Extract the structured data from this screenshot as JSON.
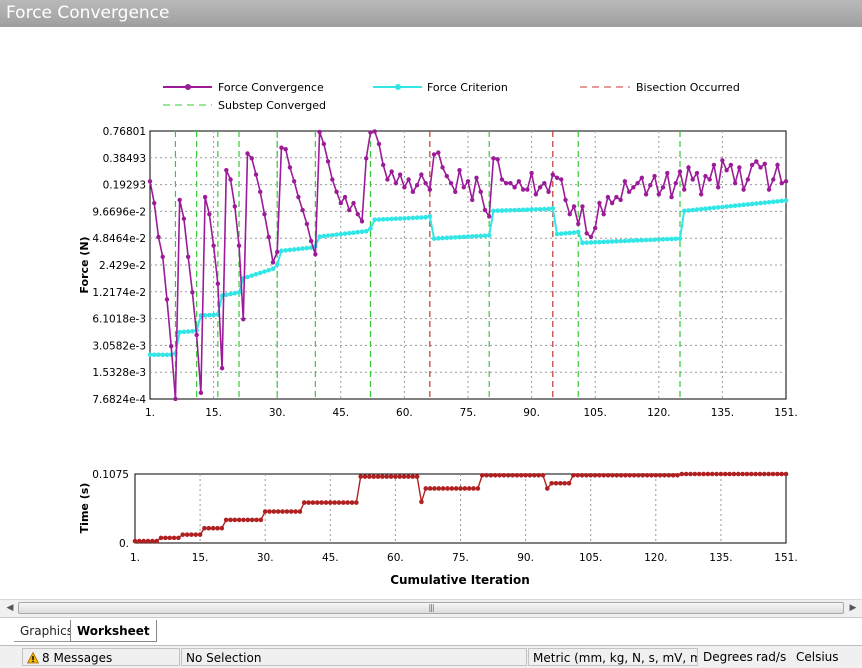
{
  "window": {
    "title": "Force Convergence"
  },
  "legend": {
    "force_convergence": "Force Convergence",
    "force_criterion": "Force Criterion",
    "bisection_occurred": "Bisection Occurred",
    "substep_converged": "Substep Converged"
  },
  "colors": {
    "force_convergence": "#9b1b99",
    "force_criterion": "#33e6e6",
    "bisection": "#c0392b",
    "substep": "#33cc33",
    "time_series": "#b02020"
  },
  "chart_data": [
    {
      "type": "line",
      "ylabel": "Force (N)",
      "yscale": "log",
      "ylim": [
        0.00076824,
        0.76801
      ],
      "xlim": [
        1,
        151
      ],
      "y_ticks": [
        "0.76801",
        "0.38493",
        "0.19293",
        "9.6696e-2",
        "4.8464e-2",
        "2.429e-2",
        "1.2174e-2",
        "6.1018e-3",
        "3.0582e-3",
        "1.5328e-3",
        "7.6824e-4"
      ],
      "x_ticks": [
        "1.",
        "15.",
        "30.",
        "45.",
        "60.",
        "75.",
        "90.",
        "105.",
        "120.",
        "135.",
        "151."
      ],
      "grid": true,
      "legend_position": "top",
      "substep_converged_iterations": [
        7,
        12,
        17,
        22,
        31,
        40,
        53,
        81,
        102,
        126
      ],
      "bisection_occurred_iterations": [
        67,
        96
      ],
      "series": [
        {
          "name": "Force Convergence",
          "points": [
            [
              1,
              0.21
            ],
            [
              2,
              0.12
            ],
            [
              3,
              0.05
            ],
            [
              4,
              0.03
            ],
            [
              5,
              0.01
            ],
            [
              6,
              0.003
            ],
            [
              7,
              0.00077
            ],
            [
              8,
              0.13
            ],
            [
              9,
              0.08
            ],
            [
              10,
              0.03
            ],
            [
              11,
              0.012
            ],
            [
              12,
              0.004
            ],
            [
              13,
              0.0009
            ],
            [
              14,
              0.14
            ],
            [
              15,
              0.09
            ],
            [
              16,
              0.04
            ],
            [
              17,
              0.015
            ],
            [
              18,
              0.0017
            ],
            [
              19,
              0.28
            ],
            [
              20,
              0.22
            ],
            [
              21,
              0.11
            ],
            [
              22,
              0.04
            ],
            [
              23,
              0.006
            ],
            [
              24,
              0.43
            ],
            [
              25,
              0.38
            ],
            [
              26,
              0.25
            ],
            [
              27,
              0.16
            ],
            [
              28,
              0.09
            ],
            [
              29,
              0.05
            ],
            [
              30,
              0.026
            ],
            [
              31,
              0.034
            ],
            [
              32,
              0.5
            ],
            [
              33,
              0.48
            ],
            [
              34,
              0.3
            ],
            [
              35,
              0.21
            ],
            [
              36,
              0.14
            ],
            [
              37,
              0.1
            ],
            [
              38,
              0.07
            ],
            [
              39,
              0.045
            ],
            [
              40,
              0.032
            ],
            [
              41,
              0.75
            ],
            [
              42,
              0.55
            ],
            [
              43,
              0.35
            ],
            [
              44,
              0.22
            ],
            [
              45,
              0.16
            ],
            [
              46,
              0.12
            ],
            [
              47,
              0.14
            ],
            [
              48,
              0.1
            ],
            [
              49,
              0.12
            ],
            [
              50,
              0.09
            ],
            [
              51,
              0.075
            ],
            [
              52,
              0.38
            ],
            [
              53,
              0.74
            ],
            [
              54,
              0.76
            ],
            [
              55,
              0.55
            ],
            [
              56,
              0.32
            ],
            [
              57,
              0.22
            ],
            [
              58,
              0.27
            ],
            [
              59,
              0.2
            ],
            [
              60,
              0.25
            ],
            [
              61,
              0.18
            ],
            [
              62,
              0.22
            ],
            [
              63,
              0.16
            ],
            [
              64,
              0.19
            ],
            [
              65,
              0.25
            ],
            [
              66,
              0.2
            ],
            [
              67,
              0.17
            ],
            [
              68,
              0.42
            ],
            [
              69,
              0.44
            ],
            [
              70,
              0.3
            ],
            [
              71,
              0.24
            ],
            [
              72,
              0.2
            ],
            [
              73,
              0.16
            ],
            [
              74,
              0.28
            ],
            [
              75,
              0.18
            ],
            [
              76,
              0.21
            ],
            [
              77,
              0.13
            ],
            [
              78,
              0.23
            ],
            [
              79,
              0.16
            ],
            [
              80,
              0.1
            ],
            [
              81,
              0.085
            ],
            [
              82,
              0.38
            ],
            [
              83,
              0.37
            ],
            [
              84,
              0.22
            ],
            [
              85,
              0.2
            ],
            [
              86,
              0.2
            ],
            [
              87,
              0.18
            ],
            [
              88,
              0.21
            ],
            [
              89,
              0.17
            ],
            [
              90,
              0.17
            ],
            [
              91,
              0.26
            ],
            [
              92,
              0.15
            ],
            [
              93,
              0.18
            ],
            [
              94,
              0.2
            ],
            [
              95,
              0.16
            ],
            [
              96,
              0.25
            ],
            [
              97,
              0.23
            ],
            [
              98,
              0.22
            ],
            [
              99,
              0.13
            ],
            [
              100,
              0.09
            ],
            [
              101,
              0.11
            ],
            [
              102,
              0.07
            ],
            [
              103,
              0.11
            ],
            [
              104,
              0.055
            ],
            [
              105,
              0.05
            ],
            [
              106,
              0.063
            ],
            [
              107,
              0.12
            ],
            [
              108,
              0.09
            ],
            [
              109,
              0.14
            ],
            [
              110,
              0.12
            ],
            [
              111,
              0.14
            ],
            [
              112,
              0.13
            ],
            [
              113,
              0.21
            ],
            [
              114,
              0.16
            ],
            [
              115,
              0.18
            ],
            [
              116,
              0.2
            ],
            [
              117,
              0.23
            ],
            [
              118,
              0.15
            ],
            [
              119,
              0.19
            ],
            [
              120,
              0.24
            ],
            [
              121,
              0.15
            ],
            [
              122,
              0.18
            ],
            [
              123,
              0.26
            ],
            [
              124,
              0.14
            ],
            [
              125,
              0.2
            ],
            [
              126,
              0.27
            ],
            [
              127,
              0.17
            ],
            [
              128,
              0.3
            ],
            [
              129,
              0.22
            ],
            [
              130,
              0.26
            ],
            [
              131,
              0.15
            ],
            [
              132,
              0.24
            ],
            [
              133,
              0.22
            ],
            [
              134,
              0.32
            ],
            [
              135,
              0.18
            ],
            [
              136,
              0.36
            ],
            [
              137,
              0.28
            ],
            [
              138,
              0.32
            ],
            [
              139,
              0.2
            ],
            [
              140,
              0.3
            ],
            [
              141,
              0.17
            ],
            [
              142,
              0.22
            ],
            [
              143,
              0.32
            ],
            [
              144,
              0.35
            ],
            [
              145,
              0.3
            ],
            [
              146,
              0.33
            ],
            [
              147,
              0.17
            ],
            [
              148,
              0.22
            ],
            [
              149,
              0.32
            ],
            [
              150,
              0.2
            ],
            [
              151,
              0.21
            ]
          ]
        },
        {
          "name": "Force Criterion",
          "points": [
            [
              1,
              0.0024
            ],
            [
              6,
              0.0024
            ],
            [
              7,
              0.0025
            ],
            [
              8,
              0.0043
            ],
            [
              11,
              0.0044
            ],
            [
              12,
              0.0045
            ],
            [
              13,
              0.0066
            ],
            [
              16,
              0.0067
            ],
            [
              17,
              0.0068
            ],
            [
              18,
              0.011
            ],
            [
              22,
              0.012
            ],
            [
              23,
              0.0172
            ],
            [
              30,
              0.022
            ],
            [
              31,
              0.0245
            ],
            [
              32,
              0.035
            ],
            [
              39,
              0.038
            ],
            [
              40,
              0.0395
            ],
            [
              41,
              0.0505
            ],
            [
              52,
              0.058
            ],
            [
              53,
              0.062
            ],
            [
              54,
              0.078
            ],
            [
              66,
              0.083
            ],
            [
              67,
              0.085
            ],
            [
              68,
              0.048
            ],
            [
              81,
              0.052
            ],
            [
              82,
              0.098
            ],
            [
              95,
              0.103
            ],
            [
              96,
              0.105
            ],
            [
              97,
              0.054
            ],
            [
              101,
              0.056
            ],
            [
              102,
              0.057
            ],
            [
              103,
              0.043
            ],
            [
              126,
              0.048
            ],
            [
              127,
              0.098
            ],
            [
              151,
              0.128
            ]
          ]
        }
      ]
    },
    {
      "type": "line",
      "ylabel": "Time (s)",
      "xlabel": "Cumulative Iteration",
      "ylim": [
        0,
        0.1075
      ],
      "xlim": [
        1,
        151
      ],
      "y_ticks": [
        "0.1075",
        "0."
      ],
      "x_ticks": [
        "1.",
        "15.",
        "30.",
        "45.",
        "60.",
        "75.",
        "90.",
        "105.",
        "120.",
        "135.",
        "151."
      ],
      "grid": true,
      "series": [
        {
          "name": "Time",
          "steps": [
            [
              1,
              6,
              0.003
            ],
            [
              7,
              11,
              0.008
            ],
            [
              12,
              16,
              0.013
            ],
            [
              17,
              21,
              0.023
            ],
            [
              22,
              30,
              0.036
            ],
            [
              31,
              39,
              0.049
            ],
            [
              40,
              52,
              0.063
            ],
            [
              53,
              66,
              0.1035
            ],
            [
              67,
              67,
              0.064
            ],
            [
              68,
              80,
              0.085
            ],
            [
              81,
              95,
              0.1055
            ],
            [
              96,
              96,
              0.085
            ],
            [
              97,
              101,
              0.093
            ],
            [
              102,
              126,
              0.1055
            ],
            [
              127,
              151,
              0.1075
            ]
          ]
        }
      ]
    }
  ],
  "scrollbar": {
    "left_arrow": "◀",
    "right_arrow": "▶",
    "grip": "|||"
  },
  "tabs": [
    {
      "label": "Graphics"
    },
    {
      "label": "Worksheet"
    }
  ],
  "status": {
    "messages": "8 Messages",
    "selection": "No Selection",
    "units": "Metric (mm, kg, N, s, mV, mA)",
    "angle": "Degrees",
    "rotational": "rad/s",
    "temperature": "Celsius"
  }
}
